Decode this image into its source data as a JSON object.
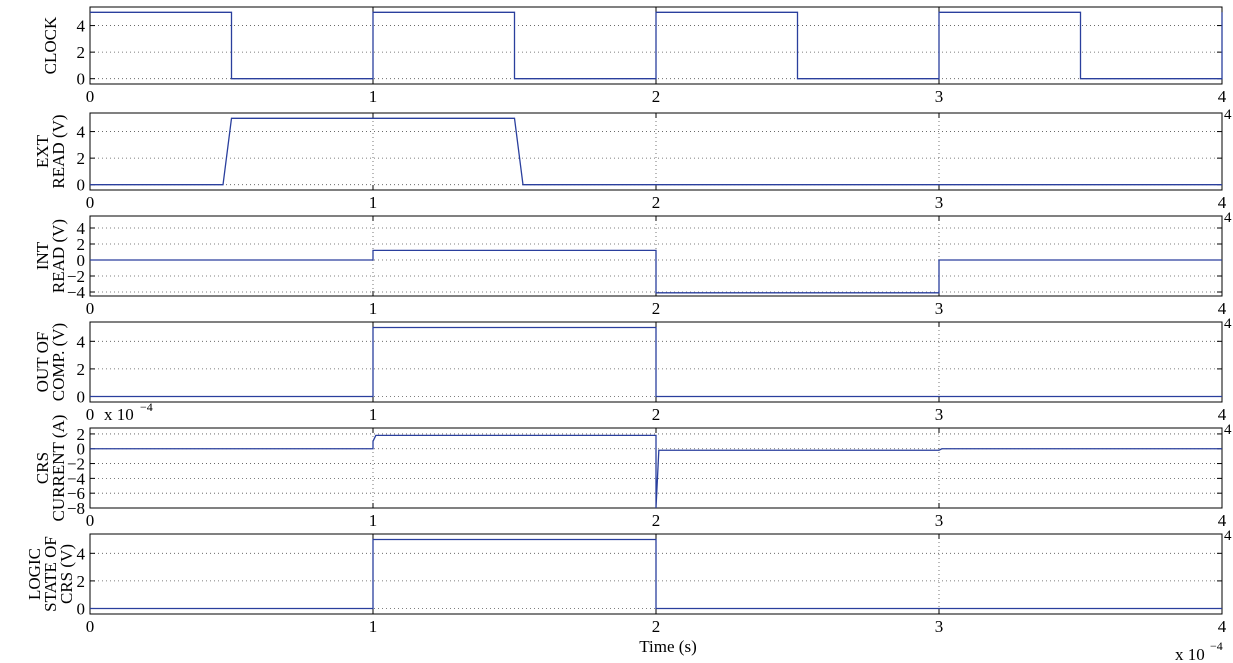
{
  "chart_data": [
    {
      "type": "line",
      "ylabel": [
        "CLOCK"
      ],
      "xlim": [
        0,
        4
      ],
      "ylim": [
        -0.4,
        5.4
      ],
      "yticks": [
        0,
        2,
        4
      ],
      "xticks": [
        0,
        1,
        2,
        3,
        4
      ],
      "x_exponent_label": "",
      "x_multiplier_label": "",
      "series": [
        {
          "x": [
            0,
            0.5,
            0.5,
            1,
            1,
            1.5,
            1.5,
            2,
            2,
            2.5,
            2.5,
            3,
            3,
            3.5,
            3.5,
            4,
            4
          ],
          "y": [
            5,
            5,
            0,
            0,
            5,
            5,
            0,
            0,
            5,
            5,
            0,
            0,
            5,
            5,
            0,
            0,
            5
          ]
        }
      ]
    },
    {
      "type": "line",
      "ylabel": [
        "EXT",
        "READ (V)"
      ],
      "xlim": [
        0,
        4
      ],
      "ylim": [
        -0.4,
        5.4
      ],
      "yticks": [
        0,
        2,
        4
      ],
      "xticks": [
        0,
        1,
        2,
        3,
        4
      ],
      "x_exponent_label": "4",
      "x_multiplier_label": "",
      "series": [
        {
          "x": [
            0,
            0.47,
            0.5,
            1.5,
            1.53,
            4
          ],
          "y": [
            0,
            0,
            5,
            5,
            0,
            0
          ]
        }
      ]
    },
    {
      "type": "line",
      "ylabel": [
        "INT",
        "READ (V)"
      ],
      "xlim": [
        0,
        4
      ],
      "ylim": [
        -4.5,
        5.5
      ],
      "yticks": [
        -4,
        -2,
        0,
        2,
        4
      ],
      "xticks": [
        0,
        1,
        2,
        3,
        4
      ],
      "x_exponent_label": "4",
      "x_multiplier_label": "",
      "series": [
        {
          "x": [
            0,
            1,
            1,
            2,
            2,
            3,
            3,
            4
          ],
          "y": [
            0,
            0,
            1.2,
            1.2,
            -4.1,
            -4.1,
            0,
            0
          ]
        }
      ]
    },
    {
      "type": "line",
      "ylabel": [
        "OUT OF",
        "COMP. (V)"
      ],
      "xlim": [
        0,
        4
      ],
      "ylim": [
        -0.4,
        5.4
      ],
      "yticks": [
        0,
        2,
        4
      ],
      "xticks": [
        0,
        1,
        2,
        3,
        4
      ],
      "x_exponent_label": "4",
      "x_multiplier_label": "x 10",
      "x_multiplier_exponent": "−4",
      "series": [
        {
          "x": [
            0,
            1,
            1,
            2,
            2,
            4
          ],
          "y": [
            0,
            0,
            5,
            5,
            0,
            0
          ]
        }
      ]
    },
    {
      "type": "line",
      "ylabel": [
        "CRS",
        "CURRENT (A)"
      ],
      "xlim": [
        0,
        4
      ],
      "ylim": [
        -8,
        2.8
      ],
      "yticks": [
        -8,
        -6,
        -4,
        -2,
        0,
        2
      ],
      "xticks": [
        0,
        1,
        2,
        3,
        4
      ],
      "x_exponent_label": "4",
      "x_multiplier_label": "",
      "series": [
        {
          "x": [
            0,
            1,
            1,
            1.01,
            2,
            2,
            2.01,
            3,
            3.01,
            4
          ],
          "y": [
            0,
            0,
            1,
            1.8,
            1.8,
            -8,
            -0.2,
            -0.2,
            0,
            0
          ]
        }
      ]
    },
    {
      "type": "line",
      "ylabel": [
        "LOGIC",
        "STATE OF",
        "CRS (V)"
      ],
      "xlim": [
        0,
        4
      ],
      "ylim": [
        -0.4,
        5.4
      ],
      "yticks": [
        0,
        2,
        4
      ],
      "xticks": [
        0,
        1,
        2,
        3,
        4
      ],
      "x_exponent_label": "4",
      "x_multiplier_label": "",
      "series": [
        {
          "x": [
            0,
            1,
            1,
            2,
            2,
            4
          ],
          "y": [
            0,
            0,
            5,
            5,
            0,
            0
          ]
        }
      ]
    }
  ],
  "xlabel": "Time (s)",
  "bottom_multiplier": "x 10",
  "bottom_multiplier_exponent": "−4"
}
